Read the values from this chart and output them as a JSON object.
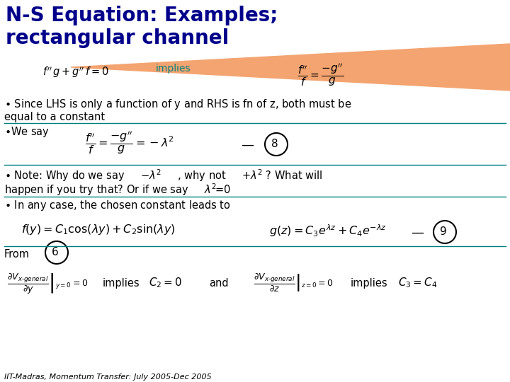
{
  "title_line1": "N-S Equation: Examples;",
  "title_line2": "rectangular channel",
  "title_color": "#00008B",
  "title_fontsize": 20,
  "bg_color": "#FFFFFF",
  "salmon_color": "#F4A470",
  "teal_color": "#008080",
  "text_color": "#000000",
  "footer": "IIT-Madras, Momentum Transfer: July 2005-Dec 2005",
  "body_fontsize": 10.5,
  "eq_fontsize": 11
}
